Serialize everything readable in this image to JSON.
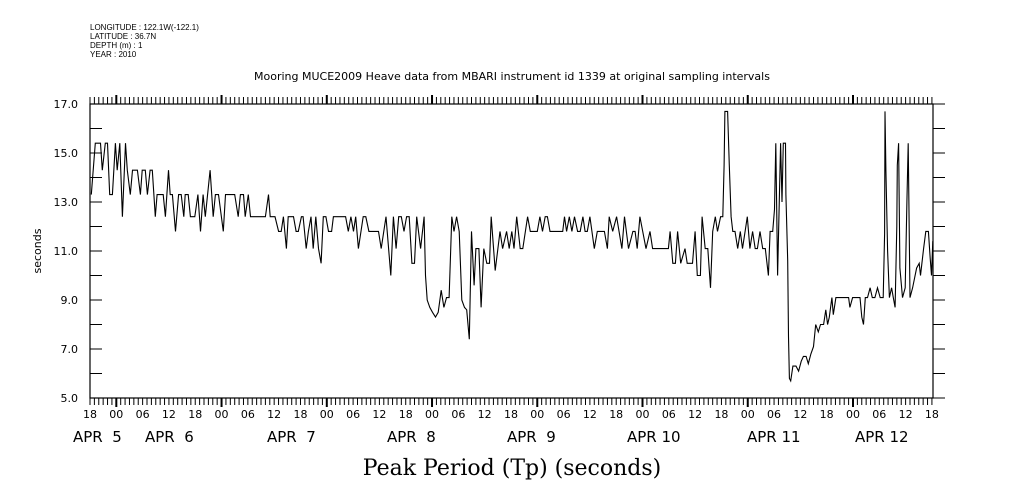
{
  "header": {
    "longitude": "LONGITUDE : 122.1W(-122.1)",
    "latitude": "LATITUDE : 36.7N",
    "depth": "DEPTH (m) : 1",
    "year": "YEAR : 2010"
  },
  "chart_data": {
    "type": "line",
    "title": "Mooring MUCE2009 Heave data from MBARI instrument id 1339 at original sampling intervals",
    "xlabel": "Peak Period (Tp) (seconds)",
    "ylabel": "seconds",
    "x_unit": "hours since APR 4 18:00 (2010)",
    "xlim": [
      0,
      192.3
    ],
    "ylim": [
      5.0,
      17.0
    ],
    "yticks": [
      "5.0",
      "7.0",
      "9.0",
      "11.0",
      "13.0",
      "15.0",
      "17.0"
    ],
    "xtick_labels": [
      "18",
      "00",
      "06",
      "12",
      "18",
      "00",
      "06",
      "12",
      "18",
      "00",
      "06",
      "12",
      "18",
      "00",
      "06",
      "12",
      "18",
      "00",
      "06",
      "12",
      "18",
      "00",
      "06",
      "12",
      "18",
      "00",
      "06",
      "12",
      "18",
      "00",
      "06",
      "12",
      "18"
    ],
    "date_labels": [
      "APR  5",
      "APR  6",
      "APR  7",
      "APR  8",
      "APR  9",
      "APR 10",
      "APR 11",
      "APR 12"
    ],
    "grid": false,
    "series": [
      {
        "name": "Peak Period (Tp)",
        "color": "#000000",
        "points": [
          [
            0.3,
            13.3
          ],
          [
            1.2,
            15.4
          ],
          [
            2.4,
            15.4
          ],
          [
            2.8,
            14.3
          ],
          [
            3.5,
            15.4
          ],
          [
            4.0,
            15.4
          ],
          [
            4.5,
            13.3
          ],
          [
            5.1,
            13.3
          ],
          [
            5.8,
            15.4
          ],
          [
            6.2,
            14.3
          ],
          [
            6.8,
            15.4
          ],
          [
            7.4,
            12.4
          ],
          [
            8.1,
            15.4
          ],
          [
            8.5,
            14.3
          ],
          [
            9.2,
            13.3
          ],
          [
            9.7,
            14.3
          ],
          [
            10.8,
            14.3
          ],
          [
            11.5,
            13.3
          ],
          [
            11.9,
            14.3
          ],
          [
            12.6,
            14.3
          ],
          [
            13.1,
            13.3
          ],
          [
            13.7,
            14.3
          ],
          [
            14.2,
            14.3
          ],
          [
            14.9,
            12.4
          ],
          [
            15.3,
            13.3
          ],
          [
            16.7,
            13.3
          ],
          [
            17.2,
            12.4
          ],
          [
            17.9,
            14.3
          ],
          [
            18.3,
            13.3
          ],
          [
            18.8,
            13.3
          ],
          [
            19.5,
            11.8
          ],
          [
            20.2,
            13.3
          ],
          [
            20.8,
            13.3
          ],
          [
            21.4,
            12.4
          ],
          [
            21.7,
            13.3
          ],
          [
            22.4,
            13.3
          ],
          [
            22.9,
            12.4
          ],
          [
            23.9,
            12.4
          ],
          [
            24.6,
            13.3
          ],
          [
            25.2,
            11.8
          ],
          [
            25.8,
            13.3
          ],
          [
            26.3,
            12.4
          ],
          [
            27.4,
            14.3
          ],
          [
            28.1,
            12.4
          ],
          [
            28.6,
            13.3
          ],
          [
            29.3,
            13.3
          ],
          [
            30.4,
            11.8
          ],
          [
            30.9,
            13.3
          ],
          [
            33.0,
            13.3
          ],
          [
            33.8,
            12.4
          ],
          [
            34.3,
            13.3
          ],
          [
            35.0,
            13.3
          ],
          [
            35.4,
            12.4
          ],
          [
            36.1,
            13.3
          ],
          [
            36.6,
            12.4
          ],
          [
            40.0,
            12.4
          ],
          [
            40.7,
            13.3
          ],
          [
            41.1,
            12.4
          ],
          [
            42.2,
            12.4
          ],
          [
            43.0,
            11.8
          ],
          [
            43.6,
            11.8
          ],
          [
            44.1,
            12.4
          ],
          [
            44.8,
            11.1
          ],
          [
            45.2,
            12.4
          ],
          [
            46.4,
            12.4
          ],
          [
            47.0,
            11.8
          ],
          [
            47.5,
            11.8
          ],
          [
            48.2,
            12.4
          ],
          [
            48.6,
            12.4
          ],
          [
            49.3,
            11.1
          ],
          [
            49.8,
            11.8
          ],
          [
            50.4,
            12.4
          ],
          [
            50.9,
            11.1
          ],
          [
            51.5,
            12.4
          ],
          [
            52.1,
            11.1
          ],
          [
            52.7,
            10.5
          ],
          [
            53.2,
            12.4
          ],
          [
            53.8,
            12.4
          ],
          [
            54.4,
            11.8
          ],
          [
            55.1,
            11.8
          ],
          [
            55.5,
            12.4
          ],
          [
            58.3,
            12.4
          ],
          [
            58.9,
            11.8
          ],
          [
            59.5,
            12.4
          ],
          [
            60.1,
            11.8
          ],
          [
            60.6,
            12.4
          ],
          [
            61.2,
            11.1
          ],
          [
            62.3,
            12.4
          ],
          [
            62.9,
            12.4
          ],
          [
            63.6,
            11.8
          ],
          [
            65.8,
            11.8
          ],
          [
            66.4,
            11.1
          ],
          [
            67.5,
            12.4
          ],
          [
            68.6,
            10.0
          ],
          [
            69.2,
            12.4
          ],
          [
            69.8,
            11.1
          ],
          [
            70.4,
            12.4
          ],
          [
            71.0,
            12.4
          ],
          [
            71.6,
            11.8
          ],
          [
            72.2,
            12.4
          ],
          [
            72.8,
            12.4
          ],
          [
            73.4,
            10.5
          ],
          [
            74.0,
            10.5
          ],
          [
            74.5,
            12.4
          ],
          [
            75.4,
            11.1
          ],
          [
            76.2,
            12.4
          ],
          [
            76.5,
            10.0
          ],
          [
            76.9,
            9.0
          ],
          [
            77.5,
            8.7
          ],
          [
            78.1,
            8.5
          ],
          [
            78.8,
            8.3
          ],
          [
            79.4,
            8.5
          ],
          [
            80.1,
            9.4
          ],
          [
            80.7,
            8.7
          ],
          [
            81.3,
            9.1
          ],
          [
            81.9,
            9.1
          ],
          [
            82.5,
            12.4
          ],
          [
            83.0,
            11.8
          ],
          [
            83.6,
            12.4
          ],
          [
            84.2,
            11.8
          ],
          [
            84.8,
            9.0
          ],
          [
            85.4,
            8.7
          ],
          [
            85.9,
            8.6
          ],
          [
            86.5,
            7.4
          ],
          [
            87.0,
            11.8
          ],
          [
            87.6,
            9.6
          ],
          [
            88.0,
            11.1
          ],
          [
            88.7,
            11.1
          ],
          [
            89.2,
            8.7
          ],
          [
            89.8,
            11.1
          ],
          [
            90.5,
            10.5
          ],
          [
            91.1,
            10.5
          ],
          [
            91.5,
            12.4
          ],
          [
            92.4,
            10.2
          ],
          [
            93.5,
            11.8
          ],
          [
            94.1,
            11.1
          ],
          [
            95.0,
            11.8
          ],
          [
            95.6,
            11.1
          ],
          [
            96.2,
            11.8
          ],
          [
            96.7,
            11.1
          ],
          [
            97.3,
            12.4
          ],
          [
            98.1,
            11.1
          ],
          [
            98.7,
            11.1
          ],
          [
            99.8,
            12.4
          ],
          [
            100.4,
            11.8
          ],
          [
            102.0,
            11.8
          ],
          [
            102.6,
            12.4
          ],
          [
            103.2,
            11.8
          ],
          [
            103.8,
            12.4
          ],
          [
            104.3,
            12.4
          ],
          [
            104.9,
            11.8
          ],
          [
            107.8,
            11.8
          ],
          [
            108.2,
            12.4
          ],
          [
            108.7,
            11.8
          ],
          [
            109.3,
            12.4
          ],
          [
            109.9,
            11.8
          ],
          [
            110.5,
            12.4
          ],
          [
            111.2,
            11.8
          ],
          [
            111.8,
            11.8
          ],
          [
            112.4,
            12.4
          ],
          [
            112.9,
            11.8
          ],
          [
            113.4,
            11.8
          ],
          [
            114.0,
            12.4
          ],
          [
            115.0,
            11.1
          ],
          [
            115.7,
            11.8
          ],
          [
            117.3,
            11.8
          ],
          [
            118.0,
            11.1
          ],
          [
            118.4,
            12.4
          ],
          [
            119.2,
            11.8
          ],
          [
            120.1,
            12.4
          ],
          [
            121.3,
            11.1
          ],
          [
            121.9,
            12.4
          ],
          [
            122.8,
            11.1
          ],
          [
            123.8,
            11.8
          ],
          [
            124.3,
            11.8
          ],
          [
            124.8,
            11.1
          ],
          [
            125.4,
            12.4
          ],
          [
            126.8,
            11.1
          ],
          [
            127.7,
            11.8
          ],
          [
            128.3,
            11.1
          ],
          [
            131.9,
            11.1
          ],
          [
            132.3,
            11.8
          ],
          [
            132.9,
            10.5
          ],
          [
            133.5,
            10.5
          ],
          [
            134.0,
            11.8
          ],
          [
            134.7,
            10.5
          ],
          [
            135.7,
            11.1
          ],
          [
            136.2,
            10.5
          ],
          [
            137.4,
            10.5
          ],
          [
            138.0,
            11.8
          ],
          [
            138.5,
            10.0
          ],
          [
            139.2,
            10.0
          ],
          [
            139.6,
            12.4
          ],
          [
            140.3,
            11.1
          ],
          [
            140.9,
            11.1
          ],
          [
            141.5,
            9.5
          ],
          [
            142.0,
            11.8
          ],
          [
            142.6,
            12.4
          ],
          [
            143.1,
            11.8
          ],
          [
            143.8,
            12.4
          ],
          [
            144.3,
            12.4
          ],
          [
            144.6,
            14.5
          ],
          [
            144.8,
            16.7
          ],
          [
            145.4,
            16.7
          ],
          [
            145.8,
            14.5
          ],
          [
            146.2,
            12.4
          ],
          [
            146.6,
            11.8
          ],
          [
            147.1,
            11.8
          ],
          [
            147.7,
            11.1
          ],
          [
            148.3,
            11.8
          ],
          [
            148.8,
            11.1
          ],
          [
            149.4,
            11.8
          ],
          [
            149.9,
            12.4
          ],
          [
            150.5,
            11.1
          ],
          [
            151.1,
            11.8
          ],
          [
            151.7,
            11.1
          ],
          [
            152.2,
            11.1
          ],
          [
            152.8,
            11.8
          ],
          [
            153.4,
            11.1
          ],
          [
            154.0,
            11.1
          ],
          [
            154.7,
            10.0
          ],
          [
            155.1,
            11.8
          ],
          [
            155.7,
            11.8
          ],
          [
            156.1,
            12.7
          ],
          [
            156.4,
            15.4
          ],
          [
            156.8,
            10.0
          ],
          [
            157.5,
            15.4
          ],
          [
            157.8,
            13.0
          ],
          [
            158.1,
            15.4
          ],
          [
            158.6,
            15.4
          ],
          [
            158.7,
            13.3
          ],
          [
            159.1,
            10.6
          ],
          [
            159.3,
            7.5
          ],
          [
            159.5,
            5.8
          ],
          [
            159.8,
            5.7
          ],
          [
            160.3,
            6.3
          ],
          [
            161.0,
            6.3
          ],
          [
            161.6,
            6.1
          ],
          [
            162.2,
            6.5
          ],
          [
            162.7,
            6.7
          ],
          [
            163.3,
            6.7
          ],
          [
            163.8,
            6.4
          ],
          [
            164.4,
            6.8
          ],
          [
            165.0,
            7.1
          ],
          [
            165.5,
            8.0
          ],
          [
            166.1,
            7.7
          ],
          [
            166.6,
            8.0
          ],
          [
            167.3,
            8.0
          ],
          [
            167.8,
            8.6
          ],
          [
            168.2,
            8.0
          ],
          [
            168.6,
            8.3
          ],
          [
            169.2,
            9.1
          ],
          [
            169.5,
            8.4
          ],
          [
            170.1,
            9.1
          ],
          [
            173.0,
            9.1
          ],
          [
            173.3,
            8.7
          ],
          [
            173.9,
            9.1
          ],
          [
            175.6,
            9.1
          ],
          [
            176.0,
            8.3
          ],
          [
            176.4,
            8.0
          ],
          [
            176.8,
            9.1
          ],
          [
            177.3,
            9.1
          ],
          [
            177.9,
            9.5
          ],
          [
            178.4,
            9.1
          ],
          [
            179.0,
            9.1
          ],
          [
            179.6,
            9.5
          ],
          [
            180.2,
            9.1
          ],
          [
            180.9,
            9.1
          ],
          [
            181.2,
            11.7
          ],
          [
            181.3,
            16.7
          ],
          [
            181.5,
            14.3
          ],
          [
            181.9,
            11.0
          ],
          [
            182.3,
            9.1
          ],
          [
            182.8,
            9.5
          ],
          [
            183.2,
            9.1
          ],
          [
            183.6,
            8.7
          ],
          [
            184.0,
            12.0
          ],
          [
            184.1,
            14.5
          ],
          [
            184.4,
            15.4
          ],
          [
            184.7,
            10.3
          ],
          [
            185.3,
            9.1
          ],
          [
            185.9,
            9.5
          ],
          [
            186.3,
            13.0
          ],
          [
            186.6,
            15.4
          ],
          [
            187.0,
            9.1
          ],
          [
            187.6,
            9.5
          ],
          [
            188.5,
            10.3
          ],
          [
            189.1,
            10.5
          ],
          [
            189.4,
            10.0
          ],
          [
            190.1,
            11.1
          ],
          [
            190.6,
            11.8
          ],
          [
            191.2,
            11.8
          ],
          [
            191.6,
            10.7
          ],
          [
            191.9,
            10.0
          ],
          [
            192.2,
            11.4
          ]
        ]
      }
    ]
  }
}
